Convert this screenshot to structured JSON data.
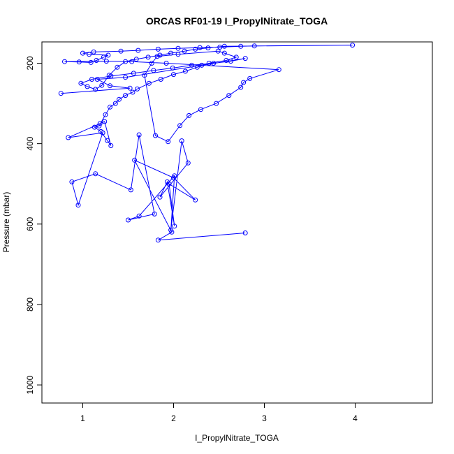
{
  "chart_data": {
    "type": "line",
    "title": "ORCAS RF01-19 I_PropylNitrate_TOGA",
    "xlabel": "I_PropylNitrate_TOGA",
    "ylabel": "Pressure (mbar)",
    "xlim": [
      0.55,
      4.85
    ],
    "ylim": [
      1045,
      147
    ],
    "y_reversed": true,
    "grid": false,
    "legend": "none",
    "x_ticks": [
      1,
      2,
      3,
      4
    ],
    "y_ticks": [
      200,
      400,
      600,
      800,
      1000
    ],
    "series": [
      {
        "color": "#0000ff",
        "marker": "open-circle",
        "x": [
          2.79,
          1.83,
          1.98,
          1.57,
          2.0,
          2.24,
          1.95,
          2.01,
          1.93,
          1.85,
          2.16,
          2.09,
          1.97,
          2.01,
          1.62,
          1.5,
          1.79,
          1.62,
          1.53,
          1.14,
          0.88,
          0.95,
          1.22,
          0.84,
          1.19,
          1.24,
          1.31,
          1.27,
          1.2,
          1.13,
          1.18,
          1.25,
          1.3,
          1.36,
          1.4,
          1.47,
          1.55,
          1.6,
          1.73,
          1.86,
          2.0,
          2.13,
          2.26,
          2.39,
          2.58,
          2.69,
          2.56,
          2.49,
          2.05,
          1.82,
          1.76,
          1.68,
          1.8,
          1.94,
          2.07,
          2.17,
          2.3,
          2.47,
          2.61,
          2.74,
          2.77,
          2.84,
          3.16,
          2.31,
          1.92,
          1.54,
          1.26,
          0.8,
          0.96,
          1.09,
          1.15,
          1.23,
          1.28,
          1.07,
          1.0,
          1.12,
          1.42,
          1.61,
          1.83,
          2.05,
          2.29,
          2.51,
          2.74,
          2.89,
          3.97,
          2.56,
          2.38,
          2.24,
          2.12,
          1.97,
          1.85,
          1.72,
          1.59,
          1.47,
          1.38,
          1.29,
          1.21,
          1.14,
          1.05,
          0.98,
          1.1,
          1.31,
          1.56,
          1.78,
          1.99,
          2.2,
          2.44,
          2.63,
          2.79,
          1.47,
          1.16,
          1.3,
          1.52,
          0.76
        ],
        "y": [
          622,
          640,
          620,
          441,
          485,
          540,
          500,
          605,
          495,
          533,
          448,
          393,
          615,
          480,
          580,
          590,
          575,
          378,
          515,
          475,
          495,
          553,
          373,
          385,
          350,
          345,
          405,
          392,
          370,
          359,
          356,
          328,
          309,
          300,
          290,
          280,
          272,
          264,
          250,
          240,
          228,
          220,
          210,
          200,
          193,
          185,
          175,
          170,
          178,
          183,
          200,
          230,
          380,
          395,
          355,
          330,
          315,
          300,
          280,
          260,
          248,
          238,
          216,
          205,
          200,
          196,
          195,
          196,
          197,
          198,
          193,
          185,
          180,
          178,
          175,
          172,
          170,
          168,
          165,
          163,
          161,
          160,
          158,
          157,
          155,
          158,
          162,
          165,
          170,
          175,
          180,
          185,
          190,
          196,
          210,
          230,
          255,
          265,
          258,
          250,
          240,
          232,
          225,
          218,
          212,
          205,
          200,
          195,
          188,
          235,
          240,
          256,
          262,
          275
        ]
      }
    ]
  }
}
